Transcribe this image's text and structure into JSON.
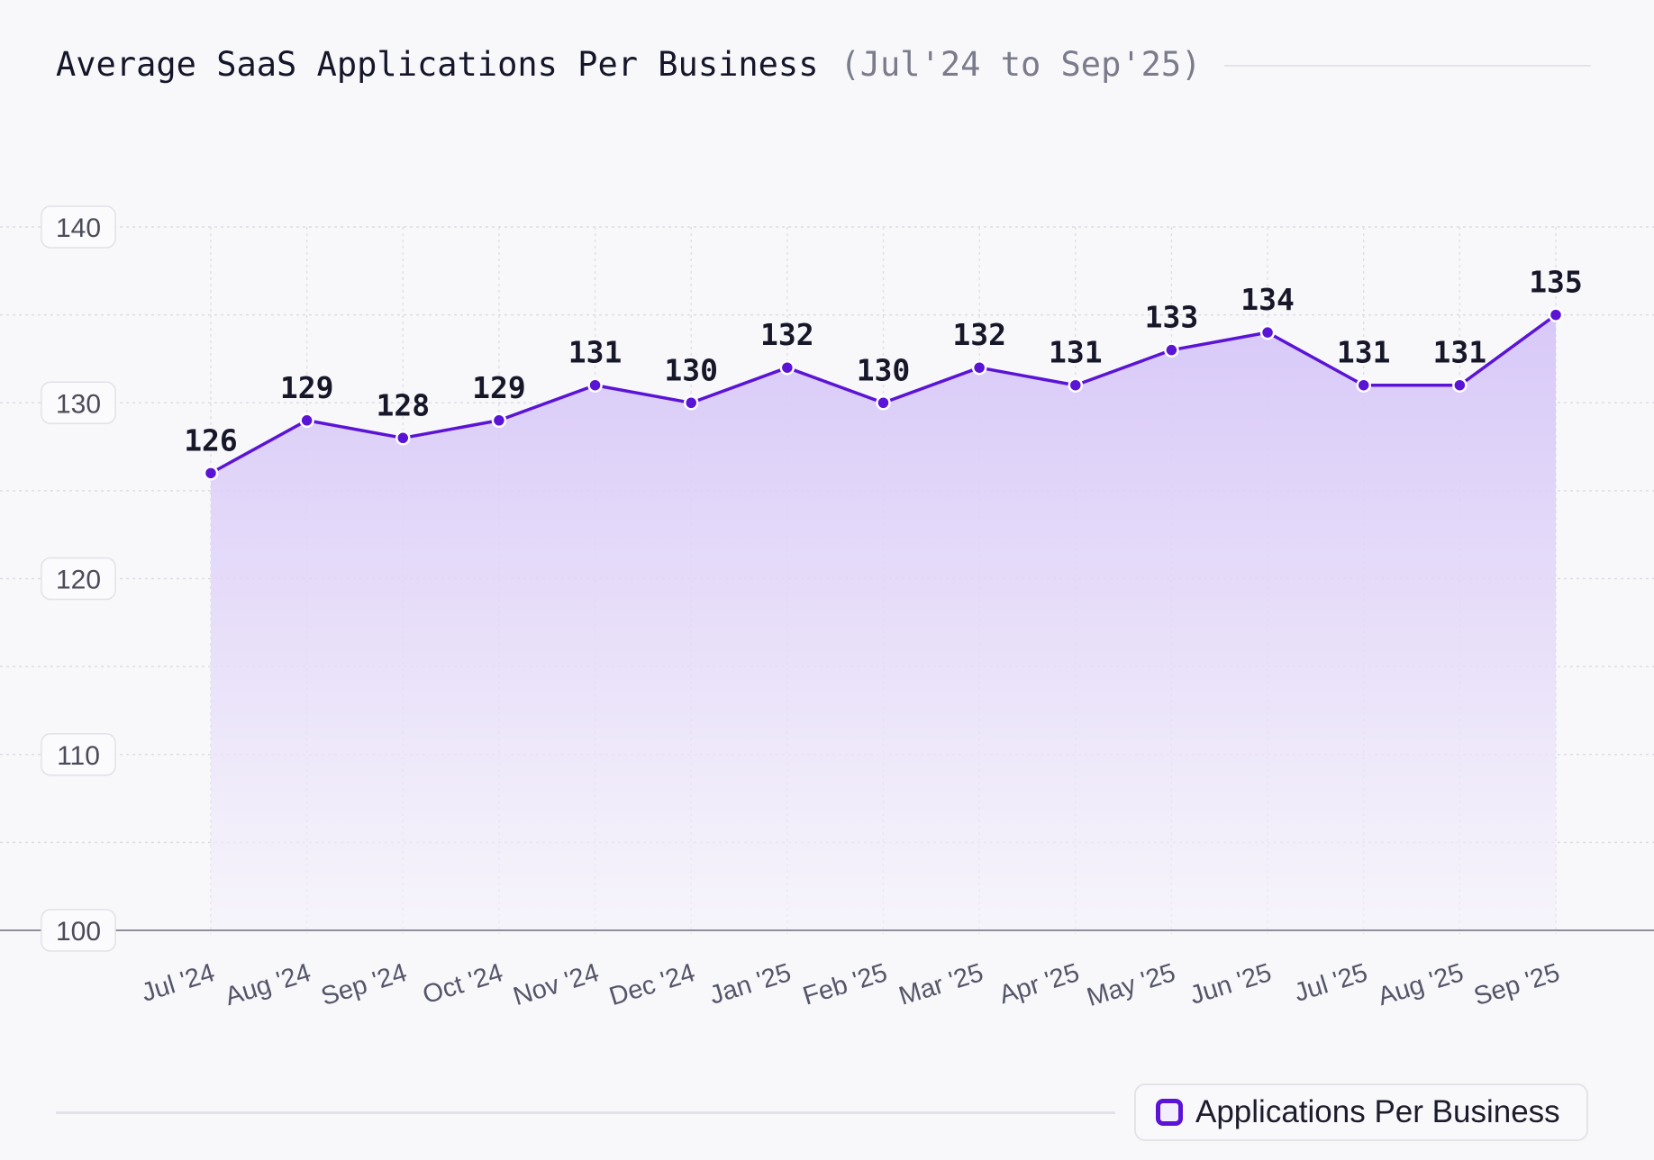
{
  "chart_data": {
    "type": "area",
    "title": "Average SaaS Applications Per Business",
    "subtitle": "(Jul'24 to Sep'25)",
    "categories": [
      "Jul '24",
      "Aug '24",
      "Sep '24",
      "Oct '24",
      "Nov '24",
      "Dec '24",
      "Jan '25",
      "Feb '25",
      "Mar '25",
      "Apr '25",
      "May '25",
      "Jun '25",
      "Jul '25",
      "Aug '25",
      "Sep '25"
    ],
    "series": [
      {
        "name": "Applications Per Business",
        "values": [
          126,
          129,
          128,
          129,
          131,
          130,
          132,
          130,
          132,
          131,
          133,
          134,
          131,
          131,
          135
        ],
        "color": "#5b14d6"
      }
    ],
    "ylim": [
      100,
      140
    ],
    "yticks": [
      100,
      110,
      120,
      130,
      140
    ],
    "xlabel": "",
    "ylabel": "",
    "grid": true,
    "legend_position": "bottom-right",
    "data_labels": true
  }
}
